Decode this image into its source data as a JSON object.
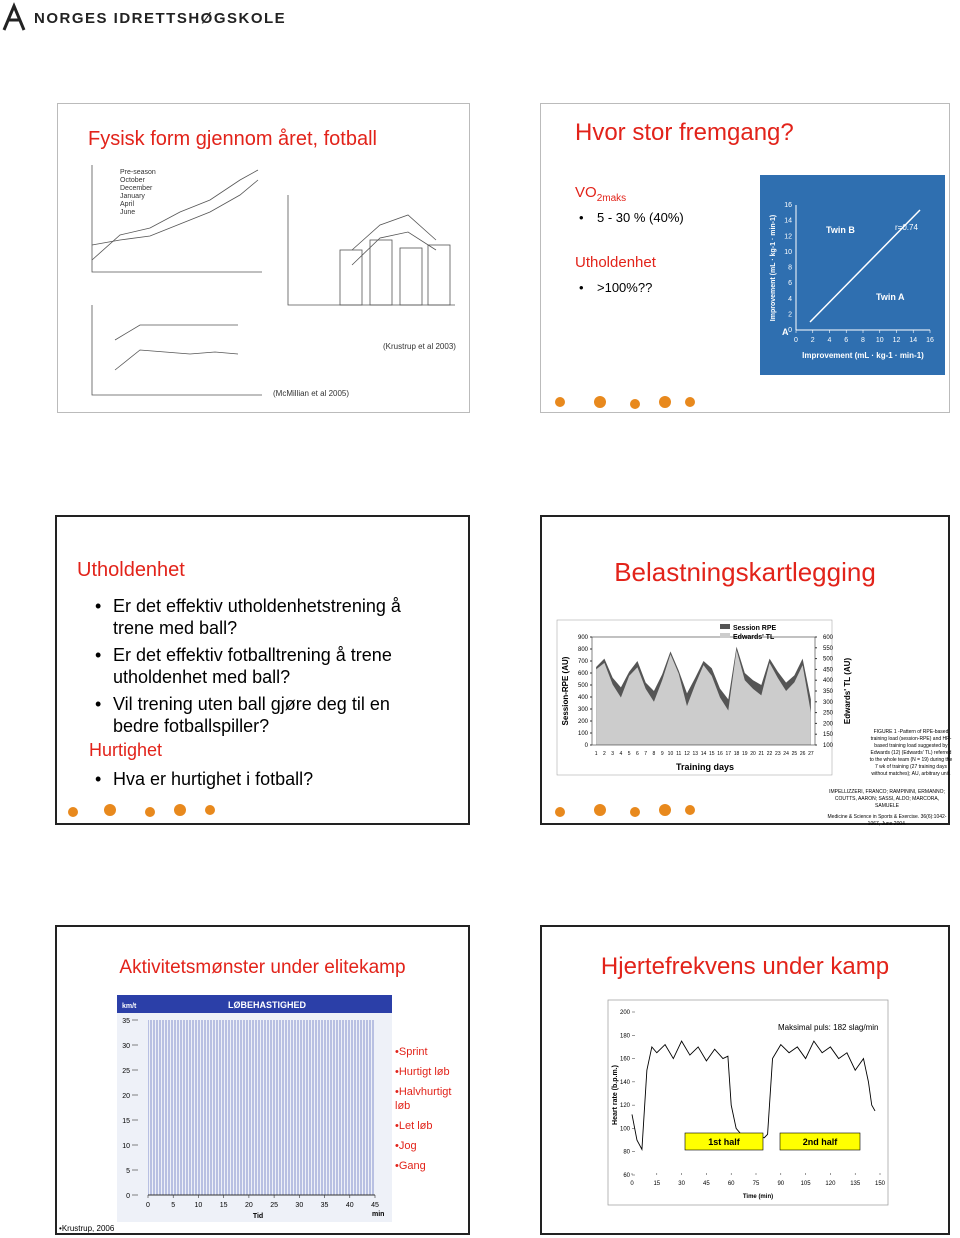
{
  "header": {
    "logo": "NORGES IDRETTSHØGSKOLE"
  },
  "slide1": {
    "title": "Fysisk form gjennom året, fotball",
    "figure_legend": [
      "Pre-season",
      "October",
      "December",
      "January",
      "April",
      "June"
    ],
    "citation_a": "(Krustrup et al 2003)",
    "citation_b": "(McMillian et al 2005)"
  },
  "slide2": {
    "title": "Hvor stor fremgang?",
    "vo": "VO",
    "vo_sub": "2maks",
    "vo_bullet": "5 - 30 % (40%)",
    "endurance": "Utholdenhet",
    "endurance_bullet": ">100%??",
    "figure": {
      "twin_b": "Twin B",
      "twin_a": "Twin A",
      "r": "r=0.74",
      "panel": "A",
      "axis_label": "Improvement (mL · kg-1 · min-1)",
      "lim": [
        0,
        16
      ],
      "ticks": [
        0,
        2,
        4,
        6,
        8,
        10,
        12,
        14,
        16
      ]
    }
  },
  "slide3": {
    "title": "Utholdenhet",
    "bullets": [
      "Er det effektiv utholdenhetstrening å trene med ball?",
      "Er det effektiv fotballtrening å trene utholdenhet med ball?",
      "Vil trening uten ball gjøre deg til en bedre fotballspiller?"
    ],
    "subtitle": "Hurtighet",
    "bullets2": [
      "Hva er hurtighet i fotball?"
    ]
  },
  "slide4": {
    "title": "Belastningskartlegging",
    "legend": [
      "Session RPE",
      "Edwards' TL"
    ],
    "y_label": "Session-RPE (AU)",
    "y2_label": "Edwards' TL (AU)",
    "x_label": "Training days",
    "days": [
      1,
      2,
      3,
      4,
      5,
      6,
      7,
      8,
      9,
      10,
      11,
      12,
      13,
      14,
      15,
      16,
      17,
      18,
      19,
      20,
      21,
      22,
      23,
      24,
      25,
      26,
      27
    ],
    "ylim": [
      0,
      900
    ],
    "yticks": [
      0,
      100,
      200,
      300,
      400,
      500,
      600,
      700,
      800,
      900
    ],
    "y2lim": [
      100,
      600
    ],
    "y2ticks": [
      100,
      150,
      200,
      250,
      300,
      350,
      400,
      450,
      500,
      550,
      600
    ],
    "session_rpe": [
      650,
      720,
      560,
      480,
      610,
      700,
      520,
      450,
      590,
      780,
      620,
      430,
      560,
      700,
      640,
      470,
      380,
      820,
      600,
      540,
      500,
      720,
      610,
      520,
      580,
      720,
      380
    ],
    "edwards_tl": [
      450,
      480,
      380,
      320,
      420,
      460,
      360,
      300,
      400,
      520,
      430,
      280,
      380,
      470,
      420,
      320,
      260,
      540,
      400,
      360,
      330,
      480,
      410,
      350,
      390,
      470,
      250
    ],
    "caption": "FIGURE 1 -Pattern of RPE-based training load (session-RPE) and HR-based training load suggested by Edwards (12) (Edwards' TL) referred to the whole team (N = 19) during the 7 wk of training (27 training days without matches); AU, arbitrary unit.",
    "reference": [
      "IMPELLIZZERI, FRANCO; RAMPININI, ERMANNO; COUTTS, AARON; SASSI, ALDO; MARCORA, SAMUELE",
      "Medicine & Science in Sports & Exercise. 36(6):1042-1067, June 2004."
    ]
  },
  "slide5": {
    "title": "Aktivitetsmønster under elitekamp",
    "chart_title": "LØBEHASTIGHED",
    "y_unit": "km/t",
    "x_label": "Tid",
    "x_unit": "min",
    "ylim": [
      0,
      35
    ],
    "yticks": [
      0,
      5,
      10,
      15,
      20,
      25,
      30,
      35
    ],
    "xlim": [
      0,
      45
    ],
    "xticks": [
      0,
      5,
      10,
      15,
      20,
      25,
      30,
      35,
      40,
      45
    ],
    "legend": [
      "Sprint",
      "Hurtigt løb",
      "Halvhurtigt løb",
      "Let løb",
      "Jog",
      "Gang"
    ],
    "citation": "Krustrup, 2006"
  },
  "slide6": {
    "title": "Hjertefrekvens under kamp",
    "note": "Maksimal puls: 182 slag/min",
    "y_label": "Heart rate (b.p.m.)",
    "x_label": "Time (min)",
    "half1": "1st  half",
    "half2": "2nd  half",
    "ylim": [
      60,
      200
    ],
    "yticks": [
      60,
      80,
      100,
      120,
      140,
      160,
      180,
      200
    ],
    "xlim": [
      0,
      150
    ],
    "xticks": [
      0,
      15,
      30,
      45,
      60,
      75,
      90,
      105,
      120,
      135,
      150
    ],
    "heart_rate": {
      "x": [
        0,
        3,
        6,
        9,
        12,
        15,
        20,
        25,
        30,
        35,
        40,
        45,
        50,
        55,
        58,
        60,
        63,
        66,
        70,
        75,
        80,
        82,
        85,
        90,
        95,
        100,
        105,
        110,
        115,
        120,
        125,
        130,
        135,
        140,
        143,
        145,
        147
      ],
      "values": [
        112,
        90,
        82,
        150,
        170,
        165,
        172,
        160,
        175,
        163,
        170,
        158,
        168,
        160,
        162,
        120,
        100,
        95,
        92,
        93,
        92,
        95,
        160,
        172,
        165,
        170,
        160,
        175,
        165,
        170,
        160,
        165,
        150,
        160,
        140,
        120,
        115
      ]
    }
  }
}
